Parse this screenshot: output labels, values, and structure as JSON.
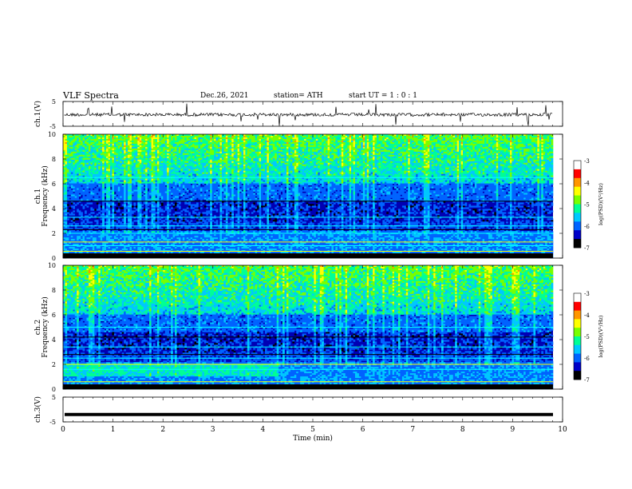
{
  "header": {
    "title": "VLF  Spectra",
    "date": "Dec.26, 2021",
    "station": "station= ATH",
    "start": "start  UT  =   1  : 0   : 1"
  },
  "colorbar": {
    "label": "log(PSD)(V²/Hz)",
    "ticks": [
      "-3",
      "-4",
      "-5",
      "-6",
      "-7"
    ]
  },
  "colormap": [
    "#000000",
    "#0000c8",
    "#0064ff",
    "#00c8ff",
    "#00ff96",
    "#78ff00",
    "#ffff00",
    "#ff9600",
    "#ff0000",
    "#ffffff"
  ],
  "chart_data": [
    {
      "type": "line",
      "name": "ch1-waveform",
      "ylabel": "ch.1(V)",
      "ylim": [
        -5,
        5
      ],
      "yticks": [
        "5",
        "-5"
      ],
      "xlim": [
        0,
        10
      ],
      "description_values": "noisy waveform centered near 0 V with sparse spikes"
    },
    {
      "type": "heatmap",
      "name": "ch1-spectrogram",
      "ylabel": "ch.1\nFrequency (kHz)",
      "ylabel_lines": [
        "ch.1",
        "Frequency (kHz)"
      ],
      "ylim": [
        0,
        10
      ],
      "yticks": [
        "0",
        "2",
        "4",
        "6",
        "8",
        "10"
      ],
      "xlim": [
        0,
        10
      ],
      "zlim": [
        -7,
        -3
      ]
    },
    {
      "type": "heatmap",
      "name": "ch2-spectrogram",
      "ylabel_lines": [
        "ch.2",
        "Frequency (kHz)"
      ],
      "ylim": [
        0,
        10
      ],
      "yticks": [
        "0",
        "2",
        "4",
        "6",
        "8",
        "10"
      ],
      "xlim": [
        0,
        10
      ],
      "zlim": [
        -7,
        -3
      ]
    },
    {
      "type": "line",
      "name": "ch3-waveform",
      "ylabel": "ch.3(V)",
      "ylim": [
        -5,
        5
      ],
      "yticks": [
        "5",
        "-5"
      ],
      "xlim": [
        0,
        10
      ],
      "constant_value": -2
    }
  ],
  "xaxis": {
    "label": "Time  (min)",
    "ticks": [
      "0",
      "1",
      "2",
      "3",
      "4",
      "5",
      "6",
      "7",
      "8",
      "9",
      "10"
    ]
  }
}
